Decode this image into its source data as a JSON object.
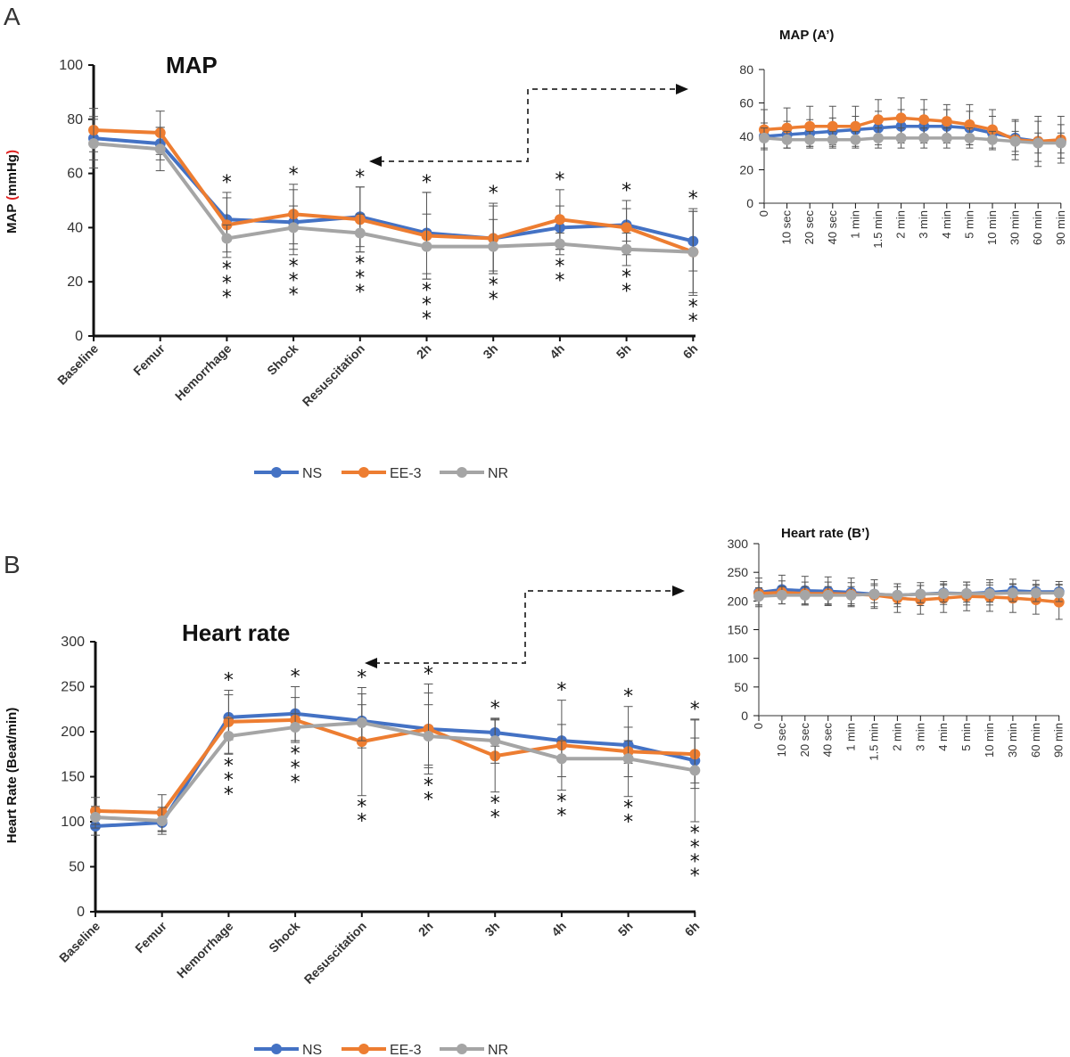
{
  "figure": {
    "panels": [
      "A",
      "B"
    ],
    "colors": {
      "NS": "#4472C4",
      "EE-3": "#ED7D31",
      "NR": "#A5A5A5"
    }
  },
  "chart_data": [
    {
      "id": "A_main",
      "panel": "A",
      "type": "line",
      "title": "MAP",
      "ylabel": "MAP (mmHg)",
      "ylabel_parts": [
        "MAP ",
        "(",
        "mmHg",
        ")"
      ],
      "ylim": [
        0,
        100
      ],
      "yticks": [
        0,
        20,
        40,
        60,
        80,
        100
      ],
      "categories": [
        "Baseline",
        "Femur",
        "Hemorrhage",
        "Shock",
        "Resuscitation",
        "2h",
        "3h",
        "4h",
        "5h",
        "6h"
      ],
      "series": [
        {
          "name": "NS",
          "values": [
            73,
            71,
            43,
            42,
            44,
            38,
            36,
            40,
            41,
            35
          ],
          "err": [
            8,
            6,
            8,
            12,
            11,
            15,
            12,
            8,
            6,
            11
          ]
        },
        {
          "name": "EE-3",
          "values": [
            76,
            75,
            41,
            45,
            43,
            37,
            36,
            43,
            40,
            31
          ],
          "err": [
            8,
            8,
            12,
            11,
            12,
            16,
            13,
            11,
            10,
            15
          ]
        },
        {
          "name": "NR",
          "values": [
            71,
            69,
            36,
            40,
            38,
            33,
            33,
            34,
            32,
            31
          ],
          "err": [
            9,
            8,
            5,
            8,
            7,
            12,
            10,
            4,
            6,
            16
          ]
        }
      ],
      "significance": [
        {
          "above": "",
          "below": ""
        },
        {
          "above": "",
          "below": ""
        },
        {
          "above": "*",
          "below": "* *\n*"
        },
        {
          "above": "*",
          "below": "* *\n*"
        },
        {
          "above": "*",
          "below": "* *\n*"
        },
        {
          "above": "*",
          "below": "* *\n*"
        },
        {
          "above": "*",
          "below": "* *"
        },
        {
          "above": "*",
          "below": "* *"
        },
        {
          "above": "*",
          "below": "* *"
        },
        {
          "above": "*",
          "below": "* *"
        }
      ],
      "legend": [
        "NS",
        "EE-3",
        "NR"
      ]
    },
    {
      "id": "A_inset",
      "panel": "A'",
      "type": "line",
      "title": "MAP (A’)",
      "ylim": [
        0,
        80
      ],
      "yticks": [
        0,
        20,
        40,
        60,
        80
      ],
      "categories": [
        "0",
        "10 sec",
        "20 sec",
        "40 sec",
        "1 min",
        "1.5 min",
        "2 min",
        "3 min",
        "4 min",
        "5 min",
        "10 min",
        "30 min",
        "60 min",
        "90 min"
      ],
      "series": [
        {
          "name": "NS",
          "values": [
            40,
            41,
            42,
            43,
            44,
            45,
            46,
            46,
            46,
            45,
            42,
            39,
            37,
            37
          ],
          "err": [
            8,
            8,
            8,
            8,
            8,
            10,
            10,
            10,
            10,
            10,
            10,
            10,
            12,
            10
          ]
        },
        {
          "name": "EE-3",
          "values": [
            44,
            45,
            46,
            46,
            46,
            50,
            51,
            50,
            49,
            47,
            44,
            38,
            37,
            38
          ],
          "err": [
            12,
            12,
            12,
            12,
            12,
            12,
            12,
            12,
            10,
            12,
            12,
            12,
            15,
            14
          ]
        },
        {
          "name": "NR",
          "values": [
            39,
            38,
            38,
            38,
            38,
            39,
            39,
            39,
            39,
            39,
            38,
            37,
            36,
            36
          ],
          "err": [
            6,
            5,
            5,
            5,
            5,
            6,
            6,
            6,
            6,
            6,
            5,
            6,
            6,
            6
          ]
        }
      ]
    },
    {
      "id": "B_main",
      "panel": "B",
      "type": "line",
      "title": "Heart rate",
      "ylabel": "Heart Rate (Beat/min)",
      "ylim": [
        0,
        300
      ],
      "yticks": [
        0,
        50,
        100,
        150,
        200,
        250,
        300
      ],
      "categories": [
        "Baseline",
        "Femur",
        "Hemorrhage",
        "Shock",
        "Resuscitation",
        "2h",
        "3h",
        "4h",
        "5h",
        "6h"
      ],
      "series": [
        {
          "name": "NS",
          "values": [
            95,
            99,
            216,
            220,
            212,
            203,
            199,
            190,
            185,
            168
          ],
          "err": [
            10,
            10,
            25,
            30,
            30,
            40,
            15,
            18,
            20,
            25
          ]
        },
        {
          "name": "EE-3",
          "values": [
            112,
            110,
            211,
            213,
            189,
            203,
            173,
            185,
            178,
            175
          ],
          "err": [
            15,
            20,
            35,
            25,
            60,
            50,
            40,
            50,
            50,
            38
          ]
        },
        {
          "name": "NR",
          "values": [
            105,
            101,
            195,
            205,
            210,
            195,
            190,
            170,
            170,
            157
          ],
          "err": [
            12,
            15,
            20,
            15,
            20,
            35,
            25,
            20,
            20,
            57
          ]
        }
      ],
      "significance": [
        {
          "above": "",
          "below": ""
        },
        {
          "above": "",
          "below": ""
        },
        {
          "above": "*",
          "below": "* *\n*"
        },
        {
          "above": "*",
          "below": "* *\n*"
        },
        {
          "above": "*",
          "below": "* *"
        },
        {
          "above": "*",
          "below": "* *"
        },
        {
          "above": "*",
          "below": "* *"
        },
        {
          "above": "*",
          "below": "* *"
        },
        {
          "above": "*",
          "below": "* *"
        },
        {
          "above": "*",
          "below": "* *\n* *"
        }
      ],
      "legend": [
        "NS",
        "EE-3",
        "NR"
      ]
    },
    {
      "id": "B_inset",
      "panel": "B'",
      "type": "line",
      "title": "Heart rate (B’)",
      "ylim": [
        0,
        300
      ],
      "yticks": [
        0,
        50,
        100,
        150,
        200,
        250,
        300
      ],
      "categories": [
        "0",
        "10 sec",
        "20 sec",
        "40 sec",
        "1 min",
        "1.5 min",
        "2 min",
        "3 min",
        "4 min",
        "5 min",
        "10 min",
        "30 min",
        "60 min",
        "90 min"
      ],
      "series": [
        {
          "name": "NS",
          "values": [
            215,
            220,
            218,
            217,
            215,
            212,
            210,
            212,
            214,
            213,
            215,
            218,
            216,
            216
          ],
          "err": [
            25,
            25,
            25,
            25,
            25,
            25,
            20,
            20,
            20,
            20,
            22,
            20,
            20,
            18
          ]
        },
        {
          "name": "EE-3",
          "values": [
            213,
            215,
            213,
            213,
            212,
            210,
            205,
            202,
            205,
            208,
            207,
            205,
            202,
            198
          ],
          "err": [
            20,
            20,
            20,
            20,
            20,
            20,
            25,
            25,
            25,
            25,
            25,
            25,
            25,
            30
          ]
        },
        {
          "name": "NR",
          "values": [
            208,
            210,
            210,
            210,
            210,
            212,
            210,
            212,
            213,
            213,
            213,
            214,
            214,
            214
          ],
          "err": [
            15,
            15,
            15,
            15,
            15,
            15,
            15,
            15,
            15,
            15,
            15,
            15,
            15,
            15
          ]
        }
      ]
    }
  ]
}
